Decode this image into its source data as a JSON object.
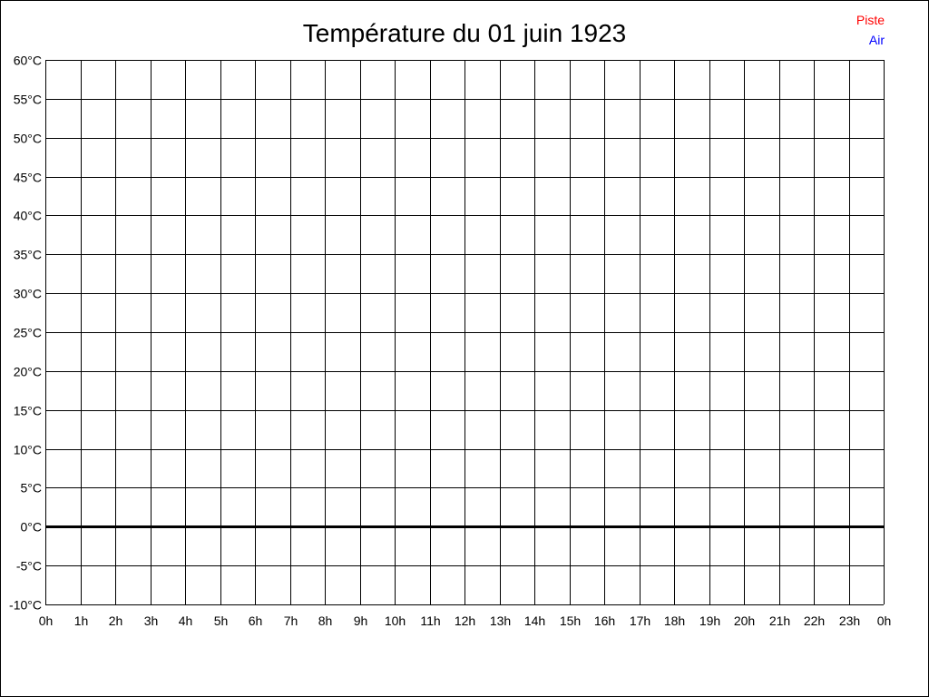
{
  "chart_data": {
    "type": "line",
    "title": "Température du 01 juin 1923",
    "xlabel": "",
    "ylabel": "",
    "x_tick_labels": [
      "0h",
      "1h",
      "2h",
      "3h",
      "4h",
      "5h",
      "6h",
      "7h",
      "8h",
      "9h",
      "10h",
      "11h",
      "12h",
      "13h",
      "14h",
      "15h",
      "16h",
      "17h",
      "18h",
      "19h",
      "20h",
      "21h",
      "22h",
      "23h",
      "0h"
    ],
    "y_tick_labels": [
      "60°C",
      "55°C",
      "50°C",
      "45°C",
      "40°C",
      "35°C",
      "30°C",
      "25°C",
      "20°C",
      "15°C",
      "10°C",
      "5°C",
      "0°C",
      "-5°C",
      "-10°C"
    ],
    "xlim": [
      0,
      24
    ],
    "ylim": [
      -10,
      60
    ],
    "y_step": 5,
    "grid": true,
    "zero_line_emphasized": true,
    "legend_position": "top-right",
    "series": [
      {
        "name": "Piste",
        "color": "#ff0000",
        "values": []
      },
      {
        "name": "Air",
        "color": "#0000ff",
        "values": []
      }
    ]
  }
}
